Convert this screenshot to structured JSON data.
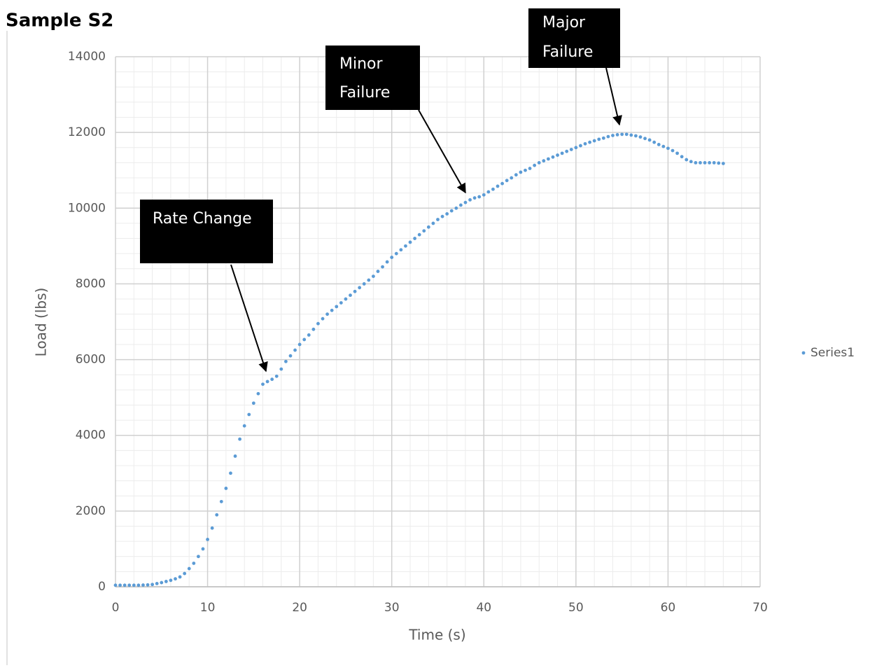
{
  "chart_data": {
    "type": "scatter",
    "title": "Sample S2",
    "x_label": "Time (s)",
    "y_label": "Load (lbs)",
    "xlim": [
      0,
      70
    ],
    "xticks": [
      0,
      10,
      20,
      30,
      40,
      50,
      60,
      70
    ],
    "ylim": [
      0,
      14000
    ],
    "yticks": [
      0,
      2000,
      4000,
      6000,
      8000,
      10000,
      12000,
      14000
    ],
    "grid": true,
    "minor_grid": true,
    "legend": "right",
    "annotations": [
      {
        "lines": [
          "Rate Change"
        ]
      },
      {
        "lines": [
          "Minor",
          "Failure"
        ]
      },
      {
        "lines": [
          "Major",
          "Failure"
        ]
      }
    ],
    "series": [
      {
        "name": "Series1",
        "color": "#5b9bd5",
        "x": [
          0,
          0.5,
          1,
          1.5,
          2,
          2.5,
          3,
          3.5,
          4,
          4.5,
          5,
          5.5,
          6,
          6.5,
          7,
          7.5,
          8,
          8.5,
          9,
          9.5,
          10,
          10.5,
          11,
          11.5,
          12,
          12.5,
          13,
          13.5,
          14,
          14.5,
          15,
          15.5,
          16,
          16.5,
          17,
          17.5,
          18,
          18.5,
          19,
          19.5,
          20,
          20.5,
          21,
          21.5,
          22,
          22.5,
          23,
          23.5,
          24,
          24.5,
          25,
          25.5,
          26,
          26.5,
          27,
          27.5,
          28,
          28.5,
          29,
          29.5,
          30,
          30.5,
          31,
          31.5,
          32,
          32.5,
          33,
          33.5,
          34,
          34.5,
          35,
          35.5,
          36,
          36.5,
          37,
          37.5,
          38,
          38.5,
          39,
          39.5,
          40,
          40.5,
          41,
          41.5,
          42,
          42.5,
          43,
          43.5,
          44,
          44.5,
          45,
          45.5,
          46,
          46.5,
          47,
          47.5,
          48,
          48.5,
          49,
          49.5,
          50,
          50.5,
          51,
          51.5,
          52,
          52.5,
          53,
          53.5,
          54,
          54.5,
          55,
          55.5,
          56,
          56.5,
          57,
          57.5,
          58,
          58.5,
          59,
          59.5,
          60,
          60.5,
          61,
          61.5,
          62,
          62.5,
          63,
          63.5,
          64,
          64.5,
          65,
          65.5,
          66
        ],
        "values": [
          40,
          40,
          40,
          40,
          40,
          40,
          45,
          50,
          60,
          85,
          110,
          140,
          170,
          210,
          260,
          350,
          480,
          620,
          800,
          1000,
          1250,
          1550,
          1900,
          2250,
          2600,
          3000,
          3450,
          3900,
          4250,
          4550,
          4850,
          5100,
          5350,
          5420,
          5480,
          5560,
          5750,
          5950,
          6100,
          6250,
          6400,
          6530,
          6650,
          6800,
          6950,
          7080,
          7200,
          7300,
          7400,
          7500,
          7600,
          7700,
          7800,
          7900,
          8000,
          8100,
          8200,
          8330,
          8450,
          8580,
          8700,
          8800,
          8900,
          9000,
          9100,
          9200,
          9300,
          9400,
          9500,
          9600,
          9700,
          9780,
          9850,
          9930,
          10000,
          10080,
          10150,
          10220,
          10270,
          10300,
          10350,
          10430,
          10500,
          10580,
          10650,
          10730,
          10800,
          10880,
          10950,
          11000,
          11050,
          11130,
          11200,
          11250,
          11300,
          11350,
          11400,
          11450,
          11500,
          11550,
          11600,
          11650,
          11700,
          11740,
          11780,
          11820,
          11850,
          11890,
          11920,
          11940,
          11950,
          11950,
          11930,
          11910,
          11880,
          11840,
          11800,
          11740,
          11680,
          11630,
          11580,
          11520,
          11450,
          11360,
          11280,
          11230,
          11200,
          11200,
          11200,
          11200,
          11200,
          11190,
          11180
        ]
      }
    ]
  }
}
